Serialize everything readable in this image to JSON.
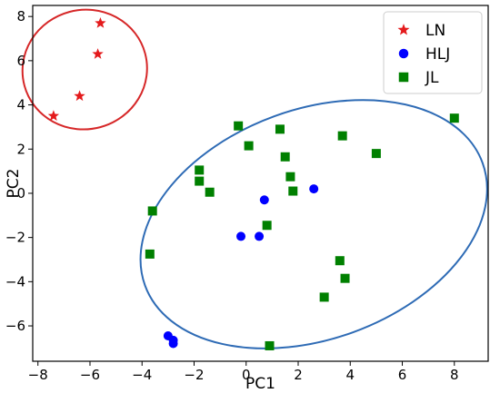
{
  "chart_data": {
    "type": "scatter",
    "xlabel": "PC1",
    "ylabel": "PC2",
    "xlim": [
      -8.2,
      9.3
    ],
    "ylim": [
      -7.6,
      8.5
    ],
    "xticks": [
      "−8",
      "−6",
      "−4",
      "−2",
      "0",
      "2",
      "4",
      "6",
      "8"
    ],
    "xtick_values": [
      -8,
      -6,
      -4,
      -2,
      0,
      2,
      4,
      6,
      8
    ],
    "yticks": [
      "−6",
      "−4",
      "−2",
      "0",
      "2",
      "4",
      "6",
      "8"
    ],
    "ytick_values": [
      -6,
      -4,
      -2,
      0,
      2,
      4,
      6,
      8
    ],
    "grid": false,
    "legend_position": "top-right",
    "series": [
      {
        "name": "LN",
        "marker": "star",
        "color": "#e41a1c",
        "points": [
          [
            -7.4,
            3.5
          ],
          [
            -6.4,
            4.4
          ],
          [
            -5.7,
            6.3
          ],
          [
            -5.6,
            7.7
          ]
        ]
      },
      {
        "name": "HLJ",
        "marker": "circle",
        "color": "#0000ff",
        "points": [
          [
            -3.0,
            -6.45
          ],
          [
            -2.8,
            -6.65
          ],
          [
            -2.8,
            -6.8
          ],
          [
            -0.2,
            -1.95
          ],
          [
            0.5,
            -1.95
          ],
          [
            0.7,
            -0.3
          ],
          [
            2.6,
            0.2
          ]
        ]
      },
      {
        "name": "JL",
        "marker": "square",
        "color": "#008000",
        "points": [
          [
            -3.6,
            -0.8
          ],
          [
            -3.7,
            -2.75
          ],
          [
            -1.8,
            1.05
          ],
          [
            -1.8,
            0.55
          ],
          [
            -1.4,
            0.05
          ],
          [
            -0.3,
            3.05
          ],
          [
            0.1,
            2.15
          ],
          [
            1.3,
            2.9
          ],
          [
            1.5,
            1.65
          ],
          [
            1.7,
            0.75
          ],
          [
            1.8,
            0.1
          ],
          [
            0.8,
            -1.45
          ],
          [
            3.7,
            2.6
          ],
          [
            5.0,
            1.8
          ],
          [
            8.0,
            3.4
          ],
          [
            3.6,
            -3.05
          ],
          [
            3.8,
            -3.85
          ],
          [
            3.0,
            -4.7
          ],
          [
            0.9,
            -6.9
          ]
        ]
      }
    ],
    "ellipses": [
      {
        "color": "#d62728",
        "center": [
          -6.2,
          5.6
        ],
        "rx": 2.4,
        "ry": 2.7,
        "rotation_deg": 15
      },
      {
        "color": "#2e6bb5",
        "center": [
          2.6,
          -1.4
        ],
        "rx": 6.9,
        "ry": 5.2,
        "rotation_deg": 20
      }
    ]
  }
}
